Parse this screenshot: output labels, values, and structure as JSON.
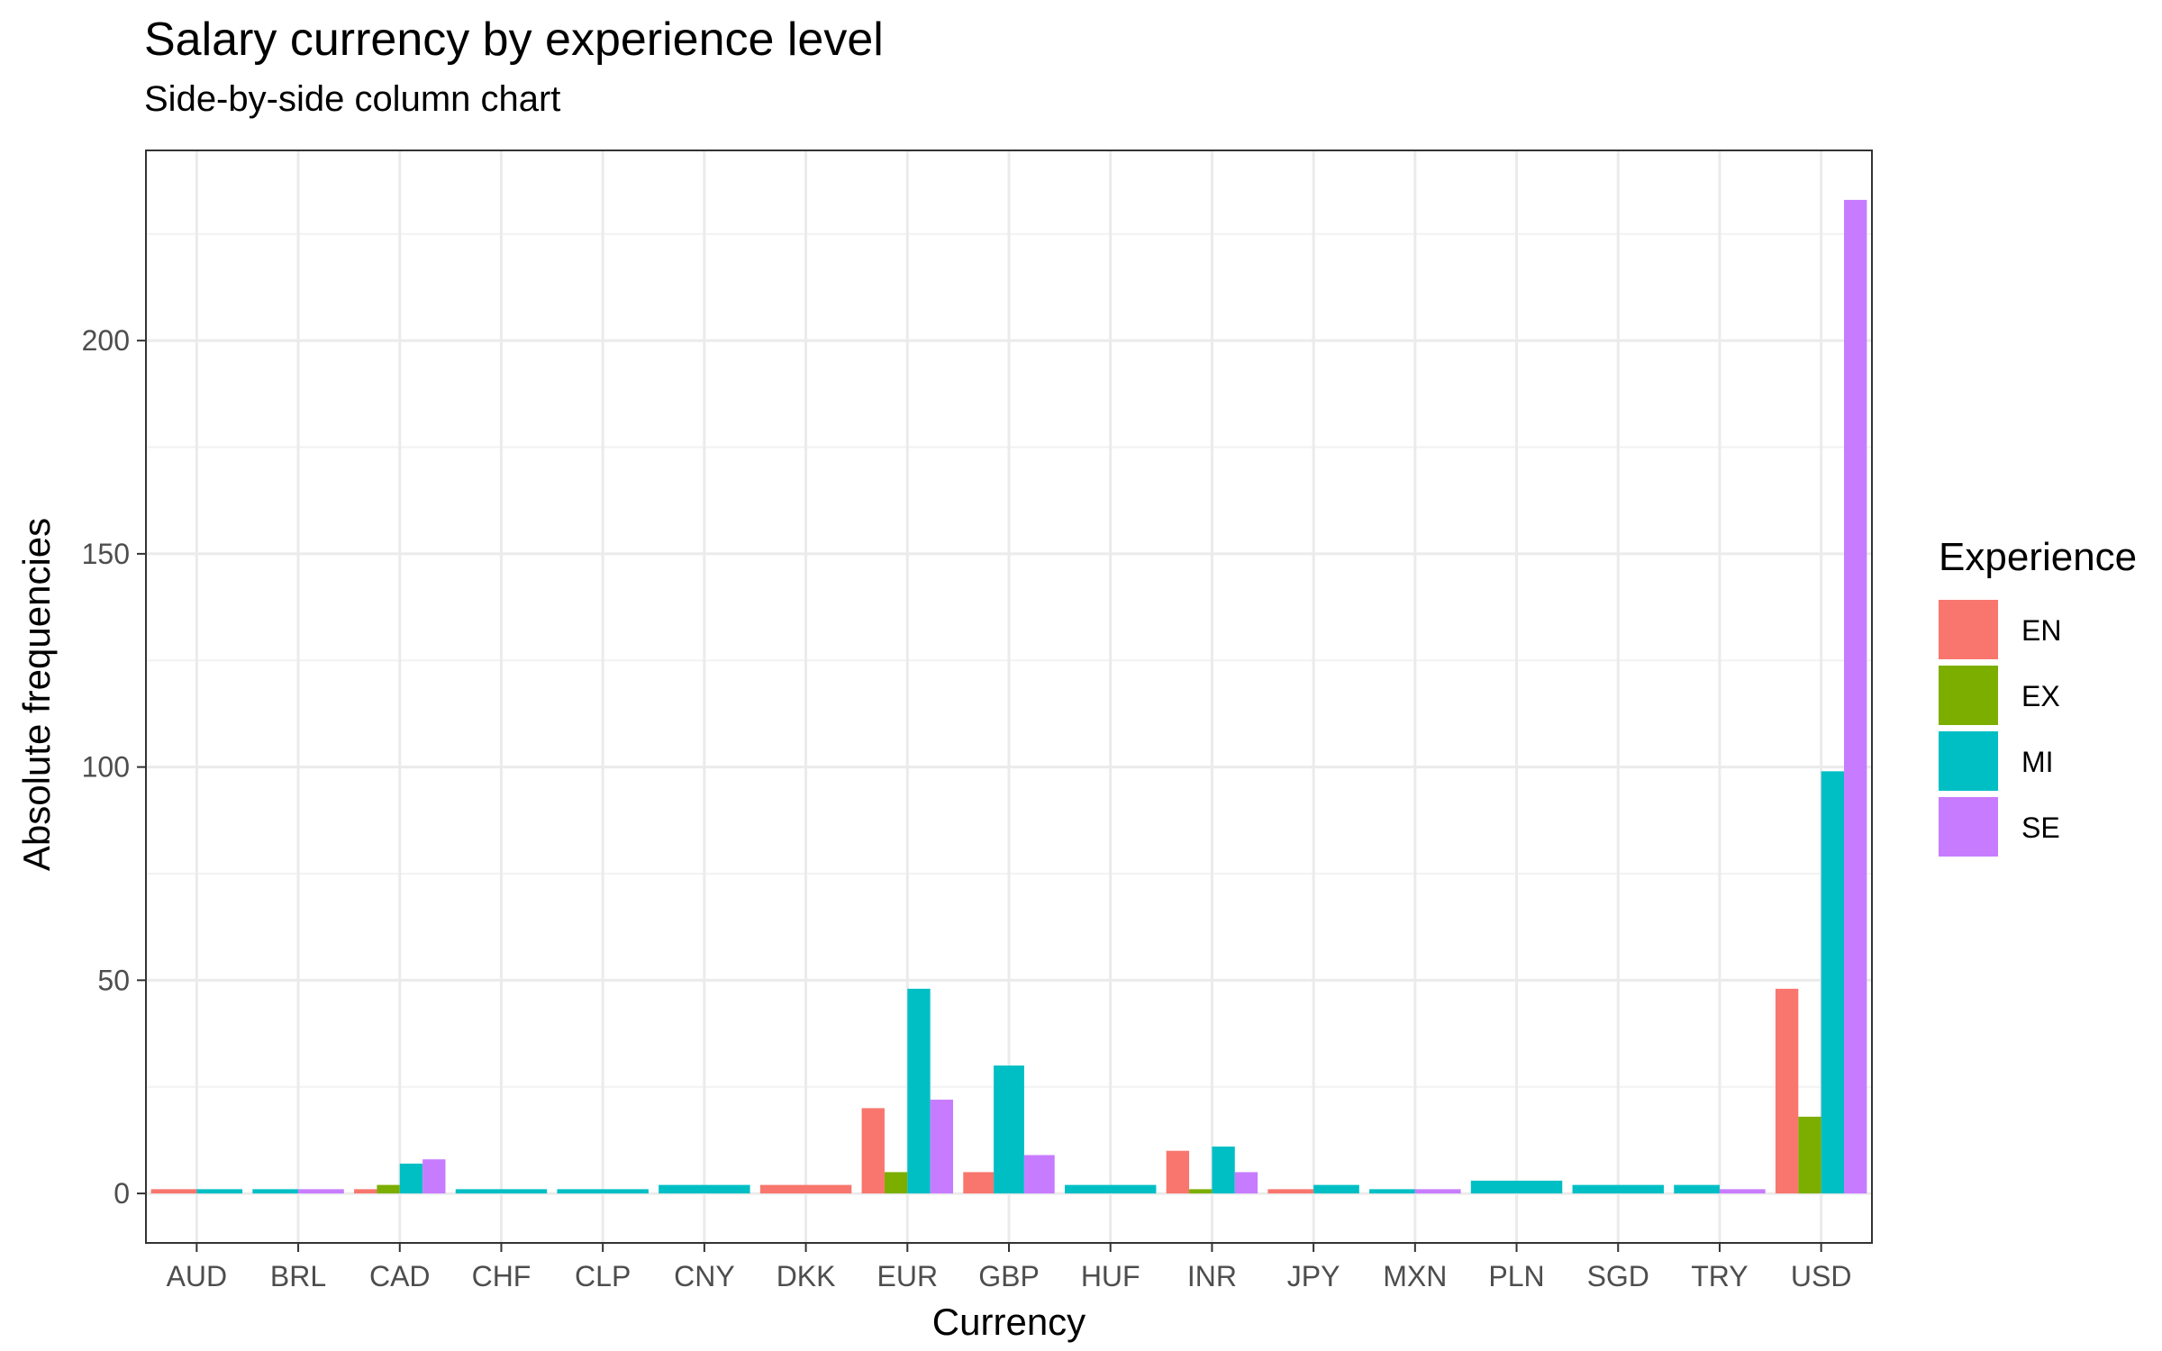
{
  "chart_data": {
    "type": "bar",
    "title": "Salary currency by experience level",
    "subtitle": "Side-by-side column chart",
    "xlabel": "Currency",
    "ylabel": "Absolute frequencies",
    "ylim": [
      -11.6,
      244.6
    ],
    "yticks": [
      0,
      50,
      100,
      150,
      200
    ],
    "grid": true,
    "legend": {
      "title": "Experience",
      "position": "right"
    },
    "series_colors": {
      "EN": "#F8766D",
      "EX": "#7CAE00",
      "MI": "#00BFC4",
      "SE": "#C77CFF"
    },
    "categories": [
      {
        "name": "AUD",
        "bars": [
          {
            "level": "EN",
            "value": 1
          },
          {
            "level": "MI",
            "value": 1
          }
        ]
      },
      {
        "name": "BRL",
        "bars": [
          {
            "level": "MI",
            "value": 1
          },
          {
            "level": "SE",
            "value": 1
          }
        ]
      },
      {
        "name": "CAD",
        "bars": [
          {
            "level": "EN",
            "value": 1
          },
          {
            "level": "EX",
            "value": 2
          },
          {
            "level": "MI",
            "value": 7
          },
          {
            "level": "SE",
            "value": 8
          }
        ]
      },
      {
        "name": "CHF",
        "bars": [
          {
            "level": "MI",
            "value": 1
          }
        ]
      },
      {
        "name": "CLP",
        "bars": [
          {
            "level": "MI",
            "value": 1
          }
        ]
      },
      {
        "name": "CNY",
        "bars": [
          {
            "level": "MI",
            "value": 2
          }
        ]
      },
      {
        "name": "DKK",
        "bars": [
          {
            "level": "EN",
            "value": 2
          }
        ]
      },
      {
        "name": "EUR",
        "bars": [
          {
            "level": "EN",
            "value": 20
          },
          {
            "level": "EX",
            "value": 5
          },
          {
            "level": "MI",
            "value": 48
          },
          {
            "level": "SE",
            "value": 22
          }
        ]
      },
      {
        "name": "GBP",
        "bars": [
          {
            "level": "EN",
            "value": 5
          },
          {
            "level": "MI",
            "value": 30
          },
          {
            "level": "SE",
            "value": 9
          }
        ]
      },
      {
        "name": "HUF",
        "bars": [
          {
            "level": "MI",
            "value": 2
          }
        ]
      },
      {
        "name": "INR",
        "bars": [
          {
            "level": "EN",
            "value": 10
          },
          {
            "level": "EX",
            "value": 1
          },
          {
            "level": "MI",
            "value": 11
          },
          {
            "level": "SE",
            "value": 5
          }
        ]
      },
      {
        "name": "JPY",
        "bars": [
          {
            "level": "EN",
            "value": 1
          },
          {
            "level": "MI",
            "value": 2
          }
        ]
      },
      {
        "name": "MXN",
        "bars": [
          {
            "level": "MI",
            "value": 1
          },
          {
            "level": "SE",
            "value": 1
          }
        ]
      },
      {
        "name": "PLN",
        "bars": [
          {
            "level": "MI",
            "value": 3
          }
        ]
      },
      {
        "name": "SGD",
        "bars": [
          {
            "level": "MI",
            "value": 2
          }
        ]
      },
      {
        "name": "TRY",
        "bars": [
          {
            "level": "MI",
            "value": 2
          },
          {
            "level": "SE",
            "value": 1
          }
        ]
      },
      {
        "name": "USD",
        "bars": [
          {
            "level": "EN",
            "value": 48
          },
          {
            "level": "EX",
            "value": 18
          },
          {
            "level": "MI",
            "value": 99
          },
          {
            "level": "SE",
            "value": 233
          }
        ]
      }
    ]
  }
}
